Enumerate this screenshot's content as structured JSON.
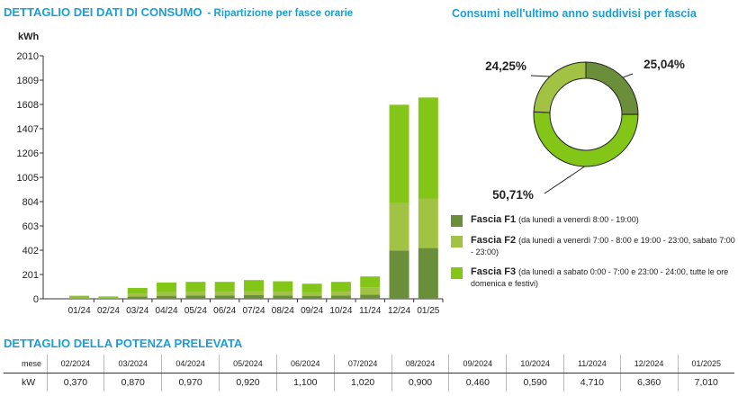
{
  "header": {
    "title": "DETTAGLIO DEI DATI DI CONSUMO",
    "subtitle": "- Ripartizione per fasce orarie",
    "donut_title": "Consumi nell'ultimo anno suddivisi per fascia",
    "power_title": "DETTAGLIO DELLA POTENZA PRELEVATA"
  },
  "colors": {
    "accent": "#1a9ed8",
    "f1": "#6a8e3a",
    "f2": "#a2c243",
    "f3": "#84c618"
  },
  "chart_data": [
    {
      "type": "bar",
      "stacked": true,
      "ylabel": "kWh",
      "ylim": [
        0,
        2010
      ],
      "yticks": [
        "0",
        "201",
        "402",
        "603",
        "804",
        "1005",
        "1206",
        "1407",
        "1608",
        "1809",
        "2010"
      ],
      "grid": false,
      "categories": [
        "01/24",
        "02/24",
        "03/24",
        "04/24",
        "05/24",
        "06/24",
        "07/24",
        "08/24",
        "09/24",
        "10/24",
        "11/24",
        "12/24",
        "01/25"
      ],
      "series": [
        {
          "name": "Fascia F1",
          "values": [
            5,
            4,
            20,
            25,
            28,
            28,
            32,
            28,
            25,
            28,
            35,
            400,
            420
          ]
        },
        {
          "name": "Fascia F2",
          "values": [
            6,
            5,
            22,
            30,
            32,
            30,
            35,
            32,
            28,
            30,
            60,
            390,
            410
          ]
        },
        {
          "name": "Fascia F3",
          "values": [
            14,
            11,
            48,
            80,
            80,
            82,
            88,
            85,
            72,
            82,
            90,
            815,
            835
          ]
        }
      ]
    },
    {
      "type": "pie",
      "donut": true,
      "labels": [
        "Fascia F1",
        "Fascia F2",
        "Fascia F3"
      ],
      "values": [
        25.04,
        24.25,
        50.71
      ],
      "value_labels": [
        "25,04%",
        "24,25%",
        "50,71%"
      ]
    }
  ],
  "legend": [
    {
      "name": "Fascia F1",
      "desc": "(da lunedì a venerdì 8:00 - 19:00)"
    },
    {
      "name": "Fascia F2",
      "desc": "(da lunedì a venerdì 7:00 - 8:00 e 19:00 - 23:00, sabato 7:00 - 23:00)"
    },
    {
      "name": "Fascia F3",
      "desc": "(da lunedì a sabato 0:00 - 7:00 e 23:00 - 24:00, tutte le ore domenica e festivi)"
    }
  ],
  "power_table": {
    "row_header": "mese",
    "row_label": "kW",
    "months": [
      "02/2024",
      "03/2024",
      "04/2024",
      "05/2024",
      "06/2024",
      "07/2024",
      "08/2024",
      "09/2024",
      "10/2024",
      "11/2024",
      "12/2024",
      "01/2025"
    ],
    "values": [
      "0,370",
      "0,870",
      "0,970",
      "0,920",
      "1,100",
      "1,020",
      "0,900",
      "0,460",
      "0,590",
      "4,710",
      "6,360",
      "7,010"
    ]
  }
}
